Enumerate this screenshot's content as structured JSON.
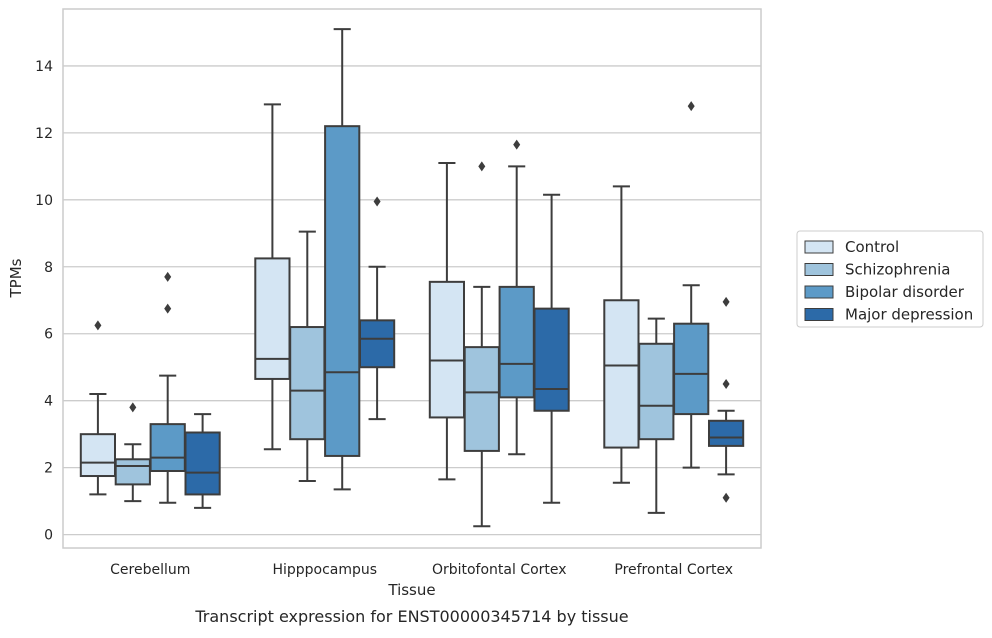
{
  "caption": "Transcript expression for ENST00000345714 by tissue",
  "chart_data": {
    "type": "box",
    "title": "",
    "xlabel": "Tissue",
    "ylabel": "TPMs",
    "ylim": [
      -0.4,
      15.7
    ],
    "yticks": [
      0,
      2,
      4,
      6,
      8,
      10,
      12,
      14
    ],
    "grid": "horizontal",
    "legend_position": "right",
    "categories": [
      "Cerebellum",
      "Hipppocampus",
      "Orbitofontal Cortex",
      "Prefrontal Cortex"
    ],
    "series": [
      {
        "name": "Control",
        "color": "#d4e5f3",
        "boxes": [
          {
            "whislo": 1.2,
            "q1": 1.75,
            "med": 2.15,
            "q3": 3.0,
            "whishi": 4.2,
            "fliers": [
              6.25
            ]
          },
          {
            "whislo": 2.55,
            "q1": 4.65,
            "med": 5.25,
            "q3": 8.25,
            "whishi": 12.85,
            "fliers": []
          },
          {
            "whislo": 1.65,
            "q1": 3.5,
            "med": 5.2,
            "q3": 7.55,
            "whishi": 11.1,
            "fliers": []
          },
          {
            "whislo": 1.55,
            "q1": 2.6,
            "med": 5.05,
            "q3": 7.0,
            "whishi": 10.4,
            "fliers": []
          }
        ]
      },
      {
        "name": "Schizophrenia",
        "color": "#9fc4dd",
        "boxes": [
          {
            "whislo": 1.0,
            "q1": 1.5,
            "med": 2.05,
            "q3": 2.25,
            "whishi": 2.7,
            "fliers": [
              3.8
            ]
          },
          {
            "whislo": 1.6,
            "q1": 2.85,
            "med": 4.3,
            "q3": 6.2,
            "whishi": 9.05,
            "fliers": []
          },
          {
            "whislo": 0.25,
            "q1": 2.5,
            "med": 4.25,
            "q3": 5.6,
            "whishi": 7.4,
            "fliers": [
              11.0
            ]
          },
          {
            "whislo": 0.65,
            "q1": 2.85,
            "med": 3.85,
            "q3": 5.7,
            "whishi": 6.45,
            "fliers": []
          }
        ]
      },
      {
        "name": "Bipolar disorder",
        "color": "#5c9ac7",
        "boxes": [
          {
            "whislo": 0.95,
            "q1": 1.9,
            "med": 2.3,
            "q3": 3.3,
            "whishi": 4.75,
            "fliers": [
              6.75,
              7.7
            ]
          },
          {
            "whislo": 1.35,
            "q1": 2.35,
            "med": 4.85,
            "q3": 12.2,
            "whishi": 15.1,
            "fliers": []
          },
          {
            "whislo": 2.4,
            "q1": 4.1,
            "med": 5.1,
            "q3": 7.4,
            "whishi": 11.0,
            "fliers": [
              11.65
            ]
          },
          {
            "whislo": 2.0,
            "q1": 3.6,
            "med": 4.8,
            "q3": 6.3,
            "whishi": 7.45,
            "fliers": [
              12.8
            ]
          }
        ]
      },
      {
        "name": "Major depression",
        "color": "#2c6aa8",
        "boxes": [
          {
            "whislo": 0.8,
            "q1": 1.2,
            "med": 1.85,
            "q3": 3.05,
            "whishi": 3.6,
            "fliers": []
          },
          {
            "whislo": 3.45,
            "q1": 5.0,
            "med": 5.85,
            "q3": 6.4,
            "whishi": 8.0,
            "fliers": [
              9.95
            ]
          },
          {
            "whislo": 0.95,
            "q1": 3.7,
            "med": 4.35,
            "q3": 6.75,
            "whishi": 10.15,
            "fliers": []
          },
          {
            "whislo": 1.8,
            "q1": 2.65,
            "med": 2.9,
            "q3": 3.4,
            "whishi": 3.7,
            "fliers": [
              1.1,
              4.5,
              6.95
            ]
          }
        ]
      }
    ]
  }
}
